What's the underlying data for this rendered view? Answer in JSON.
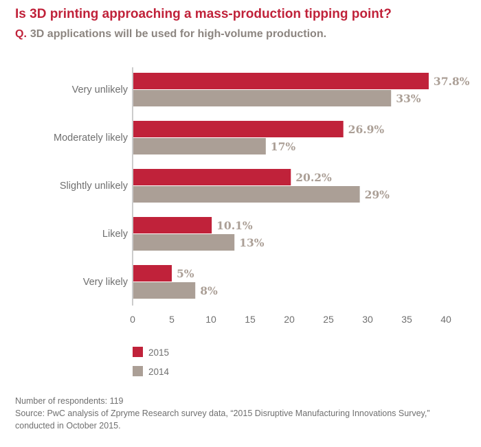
{
  "title": "Is 3D printing approaching a mass-production tipping point?",
  "subtitle_prefix": "Q.",
  "subtitle": "3D applications will be used for high-volume production.",
  "chart_data": {
    "type": "bar",
    "orientation": "horizontal",
    "categories": [
      "Very unlikely",
      "Moderately likely",
      "Slightly unlikely",
      "Likely",
      "Very likely"
    ],
    "series": [
      {
        "name": "2015",
        "values": [
          37.8,
          26.9,
          20.2,
          10.1,
          5
        ],
        "labels": [
          "37.8%",
          "26.9%",
          "20.2%",
          "10.1%",
          "5%"
        ],
        "color": "#c0223a"
      },
      {
        "name": "2014",
        "values": [
          33,
          17,
          29,
          13,
          8
        ],
        "labels": [
          "33%",
          "17%",
          "29%",
          "13%",
          "8%"
        ],
        "color": "#ab9f96"
      }
    ],
    "xlim": [
      0,
      40
    ],
    "xticks": [
      0,
      5,
      10,
      15,
      20,
      25,
      30,
      35,
      40
    ],
    "legend": [
      "2015",
      "2014"
    ]
  },
  "footer": {
    "respondents": "Number of respondents: 119",
    "source": "Source: PwC analysis of Zpryme Research survey data, “2015 Disruptive Manufacturing Innovations Survey,” conducted in October 2015."
  },
  "colors": {
    "accent": "#c0223a",
    "secondary": "#ab9f96",
    "axis": "#9a9a9a"
  }
}
